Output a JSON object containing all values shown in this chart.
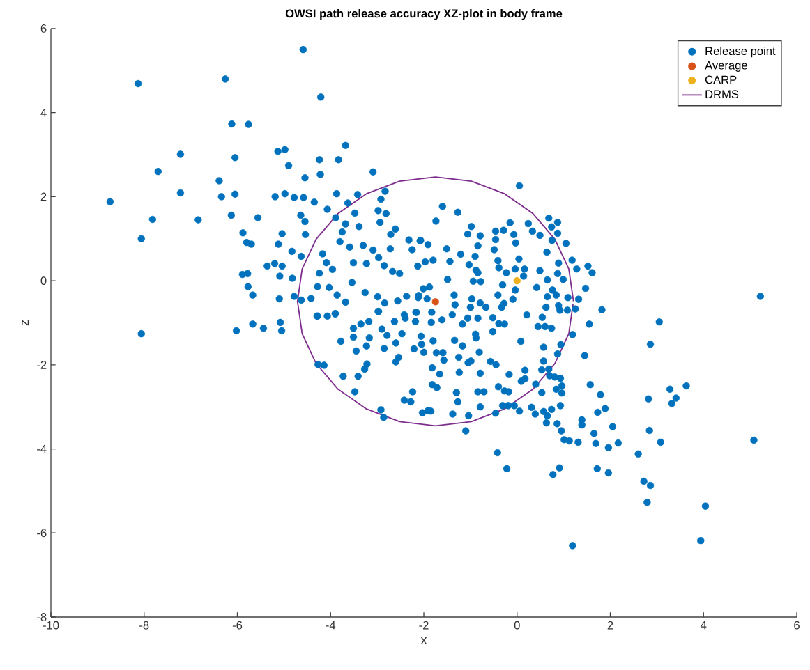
{
  "chart_data": {
    "type": "scatter",
    "title": "OWSI path release accuracy XZ-plot in body frame",
    "xlabel": "x",
    "ylabel": "z",
    "xlim": [
      -10,
      6
    ],
    "ylim": [
      -8,
      6
    ],
    "xticks": [
      -10,
      -8,
      -6,
      -4,
      -2,
      0,
      2,
      4,
      6
    ],
    "yticks": [
      -8,
      -6,
      -4,
      -2,
      0,
      2,
      4,
      6
    ],
    "legend": "top right",
    "marker": "circle",
    "series": [
      {
        "name": "Release point",
        "type": "scatter",
        "color": "#0072bd",
        "x": [
          -4.59,
          -8.13,
          -6.26,
          -4.21,
          -6.12,
          -5.76,
          -3.68,
          -7.22,
          -5.13,
          -4.98,
          -6.05,
          -4.24,
          -3.83,
          -4.9,
          -7.7,
          -3.09,
          -4.55,
          -4.22,
          -6.39,
          -8.73,
          -7.22,
          -6.34,
          -6.05,
          -5.19,
          -4.98,
          -4.78,
          -4.58,
          -4.35,
          -3.87,
          -3.42,
          -2.83,
          -7.82,
          -6.84,
          -8.06,
          -6.13,
          -5.56,
          -4.64,
          -4.55,
          -5.88,
          -5.8,
          -5.7,
          -5.04,
          -5.12,
          -4.54,
          -4.83,
          -4.63,
          -5.36,
          -5.2,
          -5.04,
          -5.89,
          -5.78,
          -5.09,
          -4.82,
          -5.77,
          -5.67,
          -5.1,
          -4.78,
          -4.63,
          -4.42,
          -4.07,
          -3.89,
          -3.63,
          -3.48,
          -3.68,
          -3.39,
          -3.75,
          -3.8,
          -3.59,
          -3.3,
          -2.92,
          -2.98,
          -2.81,
          -2.94,
          -2.61,
          -2.71,
          -2.32,
          -2.08,
          -2.25,
          -4.17,
          -4.09,
          -3.96,
          -3.51,
          -3.23,
          -3.09,
          -2.97,
          -2.85,
          -2.72,
          -4.24,
          -4.28,
          -4.03,
          -3.86,
          -3.54,
          -3.26,
          -2.99,
          -2.84,
          -2.56,
          -2.52,
          -2.67,
          -2.13,
          -1.97,
          -2.37,
          -2.11,
          -3.68,
          -4.29,
          -4.07,
          -3.9,
          -2.98,
          -2.16,
          0.05,
          -1.6,
          -1.27,
          -1.74,
          -0.98,
          -1.06,
          -0.79,
          -0.46,
          -0.46,
          -0.29,
          -0.15,
          -0.07,
          -0.03,
          0.24,
          0.33,
          0.49,
          0.68,
          0.74,
          0.87,
          0.87,
          0.75,
          1.05,
          0.64,
          0.89,
          1.18,
          1.28,
          1.52,
          1.61,
          1.47,
          1.82,
          5.22,
          3.05,
          -0.84,
          -0.49,
          -0.41,
          -0.39,
          -1.21,
          -1.51,
          -1.44,
          -1.8,
          -2.07,
          -1.91,
          -1.03,
          -0.9,
          -0.88,
          -0.84,
          -0.94,
          -0.78,
          -1.49,
          0.04,
          0.16,
          -0.23,
          -0.04,
          0.14,
          0.49,
          -0.31,
          -0.04,
          -0.09,
          0.42,
          0.65,
          0.76,
          0.84,
          0.99,
          0.87,
          0.65,
          1.09,
          1.32,
          0.62,
          0.89,
          0.92,
          1.08,
          1.25,
          0.21,
          0.54,
          1.55,
          -0.41,
          -0.28,
          -0.33,
          -0.52,
          -0.97,
          -1.0,
          -0.79,
          -0.67,
          -1.35,
          -1.33,
          -1.39,
          -1.61,
          -1.83,
          -2.01,
          -1.88,
          -2.12,
          -1.93,
          -8.06,
          -6.02,
          -5.67,
          -5.44,
          -5.08,
          -5.05,
          -4.28,
          -3.9,
          -3.78,
          -3.51,
          -3.45,
          -3.23,
          -3.18,
          -3.35,
          -3.51,
          -3.17,
          -2.97,
          -2.9,
          -2.85,
          -2.79,
          -2.63,
          -2.6,
          -2.47,
          -2.42,
          -2.4,
          -2.18,
          -2.17,
          -2.21,
          -2.06,
          -2.0,
          -4.27,
          -4.14,
          -3.73,
          -3.41,
          -3.27,
          -3.22,
          -2.54,
          -2.6,
          -3.48,
          -2.24,
          -2.42,
          -2.28,
          -2.92,
          -2.86,
          -2.03,
          -1.85,
          -1.82,
          -1.82,
          2.86,
          1.19,
          0.94,
          0.87,
          1.45,
          0.57,
          0.57,
          0.53,
          0.68,
          0.7,
          0.81,
          0.93,
          0.96,
          0.84,
          0.96,
          0.53,
          1.57,
          1.79,
          3.28,
          3.63,
          3.41,
          3.32,
          2.82,
          0.93,
          0.74,
          0.31,
          0.39,
          0.05,
          -0.06,
          -0.19,
          -0.31,
          -0.46,
          0.57,
          0.65,
          0.63,
          0.86,
          0.95,
          1.01,
          1.12,
          1.31,
          1.39,
          1.39,
          1.73,
          1.89,
          2.05,
          1.65,
          1.69,
          1.96,
          2.17,
          2.6,
          2.84,
          3.08,
          5.08,
          -0.42,
          -0.22,
          0.91,
          0.77,
          1.72,
          1.96,
          2.72,
          2.86,
          2.79,
          4.04,
          3.94,
          1.19,
          -1.1,
          -1.04,
          -1.38,
          -1.91,
          -0.79,
          -1.3,
          -1.27,
          -0.84,
          -0.71,
          -0.4,
          -0.27,
          -0.18,
          0.09,
          0.17,
          0.4,
          -0.17,
          0.17,
          0.08,
          -0.57,
          -0.45,
          -0.79,
          -1.24,
          -1.05,
          -0.99,
          -0.81,
          -1.25,
          -1.57,
          -1.66,
          -1.72,
          -1.34,
          -1.17,
          -1.73,
          -1.59,
          -1.8,
          -2.05,
          -0.89,
          -0.88,
          -0.52,
          -0.39,
          -0.27,
          0.45,
          0.6,
          0.74,
          -1.84,
          -1.06,
          -0.84,
          -1.17
        ],
        "values": [
          5.5,
          4.69,
          4.8,
          4.37,
          3.73,
          3.72,
          3.22,
          3.01,
          3.08,
          3.12,
          2.93,
          2.88,
          2.88,
          2.74,
          2.6,
          2.59,
          2.45,
          2.53,
          2.38,
          1.88,
          2.09,
          2.0,
          2.06,
          2.0,
          2.07,
          1.98,
          1.98,
          1.87,
          2.07,
          2.05,
          2.13,
          1.46,
          1.45,
          1.0,
          1.56,
          1.5,
          1.56,
          1.41,
          1.14,
          0.91,
          0.87,
          1.12,
          0.87,
          1.1,
          0.7,
          0.58,
          0.35,
          0.41,
          0.35,
          0.15,
          0.17,
          0.11,
          0.06,
          -0.14,
          -0.34,
          -0.43,
          -0.37,
          -0.46,
          -0.42,
          1.7,
          1.5,
          1.85,
          1.61,
          1.35,
          1.29,
          1.16,
          0.93,
          0.8,
          0.84,
          1.94,
          1.67,
          1.6,
          1.39,
          1.23,
          1.1,
          0.97,
          0.95,
          0.74,
          0.64,
          0.43,
          0.27,
          0.43,
          0.41,
          0.73,
          0.55,
          0.36,
          0.76,
          0.18,
          -0.14,
          -0.16,
          -0.34,
          -0.04,
          -0.28,
          -0.38,
          -0.53,
          -0.48,
          0.17,
          0.22,
          0.35,
          0.45,
          -0.37,
          -0.35,
          -0.51,
          -0.84,
          -0.84,
          -0.79,
          -0.73,
          -0.75,
          2.26,
          1.77,
          1.63,
          1.42,
          1.29,
          1.11,
          1.07,
          1.18,
          0.98,
          1.2,
          1.38,
          1.1,
          0.9,
          1.36,
          1.18,
          1.08,
          1.49,
          1.28,
          1.39,
          1.13,
          0.96,
          0.89,
          0.68,
          0.42,
          0.49,
          0.28,
          0.35,
          0.19,
          -0.18,
          -0.69,
          -0.37,
          -0.98,
          0.83,
          0.74,
          0.48,
          0.31,
          0.63,
          0.76,
          0.46,
          0.49,
          0.96,
          0.86,
          0.38,
          0.58,
          0.25,
          0.19,
          -0.01,
          -0.02,
          0.03,
          0.52,
          0.28,
          0.19,
          0.28,
          0.11,
          0.24,
          -0.1,
          -0.22,
          -0.44,
          -0.16,
          0.02,
          -0.22,
          -0.34,
          0.03,
          0.17,
          -0.38,
          -0.4,
          -0.44,
          -0.63,
          -0.59,
          -0.7,
          -0.7,
          -0.67,
          -0.81,
          -0.87,
          -1.03,
          -0.34,
          -0.54,
          -0.63,
          -0.88,
          -0.43,
          -0.63,
          -0.53,
          -0.63,
          -0.34,
          -0.57,
          -0.81,
          -0.93,
          -0.75,
          -0.19,
          -0.15,
          -0.4,
          -0.43,
          -1.26,
          -1.19,
          -1.03,
          -1.13,
          -0.99,
          -1.19,
          -0.84,
          -0.78,
          -1.44,
          -1.34,
          -1.67,
          -1.55,
          -0.97,
          -1.03,
          -1.13,
          -1.36,
          -0.73,
          -1.15,
          -1.61,
          -1.3,
          -0.97,
          -1.48,
          -1.26,
          -0.81,
          -0.89,
          -0.97,
          -0.75,
          -1.62,
          -1.32,
          -1.7,
          -1.99,
          -2.01,
          -2.27,
          -2.27,
          -2.1,
          -1.98,
          -1.82,
          -1.93,
          -2.64,
          -2.64,
          -2.84,
          -2.88,
          -3.07,
          -3.25,
          -3.14,
          -3.1,
          -2.47,
          -2.07,
          -1.51,
          -1.28,
          -1.52,
          -1.74,
          -1.78,
          -1.58,
          -1.91,
          -2.12,
          -2.1,
          -2.26,
          -2.29,
          -2.32,
          -2.5,
          -2.58,
          -2.67,
          -2.66,
          -2.47,
          -2.71,
          -2.58,
          -2.5,
          -2.79,
          -2.92,
          -2.81,
          -2.97,
          -3.06,
          -3.01,
          -3.17,
          -3.1,
          -2.97,
          -2.97,
          -2.97,
          -3.15,
          -3.11,
          -3.21,
          -3.38,
          -3.4,
          -3.57,
          -3.78,
          -3.81,
          -3.84,
          -3.31,
          -3.43,
          -3.13,
          -3.04,
          -3.47,
          -3.63,
          -3.87,
          -3.97,
          -3.86,
          -4.12,
          -3.56,
          -3.84,
          -3.79,
          -4.09,
          -4.47,
          -4.45,
          -4.61,
          -4.47,
          -4.57,
          -4.77,
          -4.87,
          -5.27,
          -5.36,
          -6.18,
          -6.3,
          -3.57,
          -3.21,
          -3.17,
          -3.09,
          -3.0,
          -2.66,
          -2.88,
          -2.64,
          -2.64,
          -2.52,
          -2.62,
          -2.64,
          -2.39,
          -2.33,
          -2.46,
          -2.23,
          -2.13,
          -1.44,
          -1.92,
          -2.0,
          -2.2,
          -2.18,
          -1.95,
          -1.91,
          -1.7,
          -1.82,
          -1.89,
          -2.22,
          -2.54,
          -1.42,
          -1.55,
          -1.71,
          -1.71,
          -1.43,
          -1.51,
          -1.27,
          -1.36,
          -1.21,
          -1.02,
          -1.03,
          -1.09,
          -1.09,
          -1.13,
          -0.99,
          -0.89,
          -0.89,
          -1.03
        ]
      },
      {
        "name": "Average",
        "type": "scatter",
        "color": "#d95319",
        "x": [
          -1.75
        ],
        "values": [
          -0.5
        ]
      },
      {
        "name": "CARP",
        "type": "scatter",
        "color": "#edb120",
        "x": [
          0
        ],
        "values": [
          0
        ]
      },
      {
        "name": "DRMS",
        "type": "line",
        "marker": "none",
        "color": "#7e2f8e",
        "x": [
          1.21,
          1.11,
          0.81,
          0.34,
          -0.27,
          -0.98,
          -1.75,
          -2.52,
          -3.23,
          -3.84,
          -4.31,
          -4.61,
          -4.71,
          -4.61,
          -4.31,
          -3.84,
          -3.23,
          -2.52,
          -1.75,
          -0.98,
          -0.27,
          0.34,
          0.81,
          1.11,
          1.2
        ],
        "values": [
          -0.49,
          0.28,
          0.99,
          1.6,
          2.07,
          2.37,
          2.47,
          2.37,
          2.07,
          1.6,
          0.99,
          0.28,
          -0.49,
          -1.26,
          -1.97,
          -2.58,
          -3.05,
          -3.35,
          -3.45,
          -3.35,
          -3.05,
          -2.58,
          -1.97,
          -1.26,
          -0.56
        ]
      }
    ]
  }
}
